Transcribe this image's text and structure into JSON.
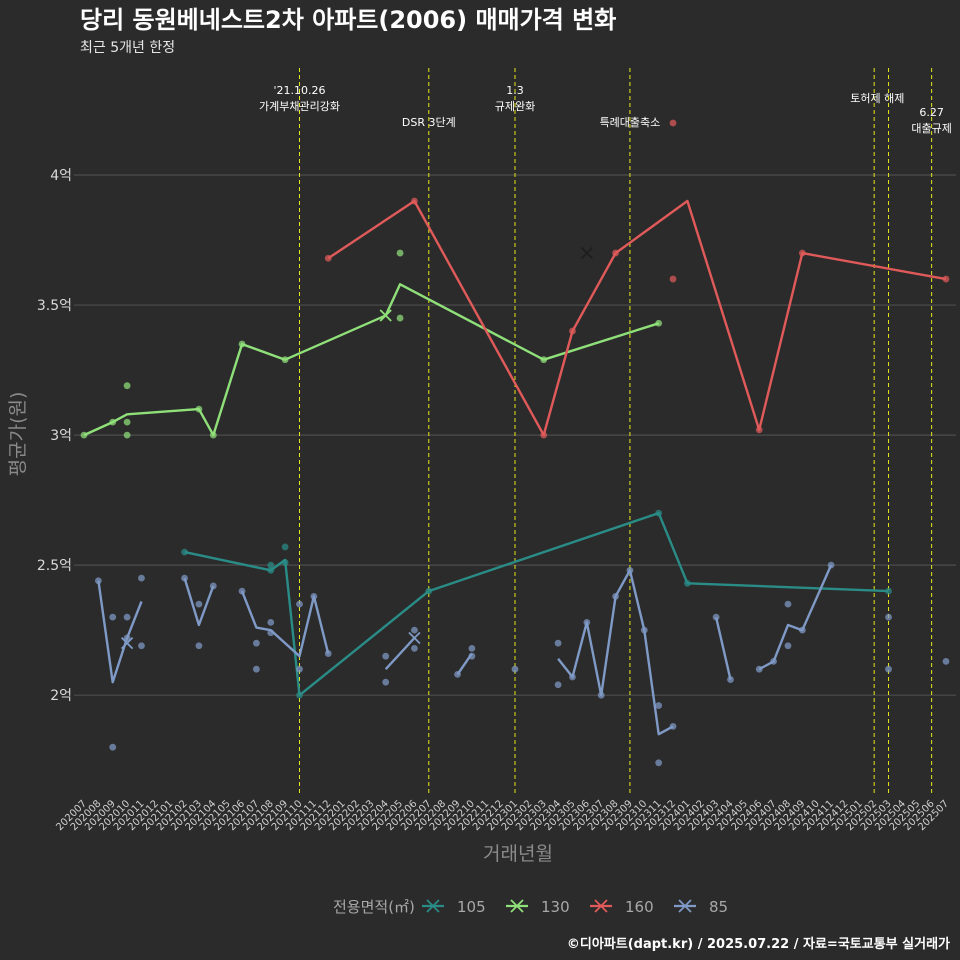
{
  "title": "당리 동원베네스트2차 아파트(2006) 매매가격 변화",
  "subtitle": "최근 5개년 한정",
  "footer": "©디아파트(dapt.kr) / 2025.07.22 / 자료=국토교통부 실거래가",
  "colors": {
    "background": "#2b2b2b",
    "grid": "#4d4d4d",
    "event_line": "#e6e619",
    "105": "#2a8c86",
    "130": "#90e07a",
    "160": "#e05a5a",
    "85": "#7f9ac6"
  },
  "chart_data": {
    "type": "line",
    "title": "당리 동원베네스트2차 아파트(2006) 매매가격 변화",
    "subtitle": "최근 5개년 한정",
    "xlabel": "거래년월",
    "ylabel": "평균가(원)",
    "ylim": [
      1.62,
      4.45
    ],
    "yticks": [
      2,
      2.5,
      3,
      3.5,
      4
    ],
    "ytick_labels": [
      "2억",
      "2.5억",
      "3억",
      "3.5억",
      "4억"
    ],
    "x_categories": [
      "202007",
      "202008",
      "202009",
      "202010",
      "202011",
      "202012",
      "202101",
      "202102",
      "202103",
      "202104",
      "202105",
      "202106",
      "202107",
      "202108",
      "202109",
      "202110",
      "202111",
      "202112",
      "202201",
      "202202",
      "202203",
      "202204",
      "202205",
      "202206",
      "202207",
      "202208",
      "202209",
      "202210",
      "202211",
      "202212",
      "202301",
      "202302",
      "202303",
      "202304",
      "202305",
      "202306",
      "202307",
      "202308",
      "202309",
      "202310",
      "202311",
      "202312",
      "202401",
      "202402",
      "202403",
      "202404",
      "202405",
      "202406",
      "202407",
      "202408",
      "202409",
      "202410",
      "202411",
      "202412",
      "202501",
      "202502",
      "202503",
      "202504",
      "202505",
      "202506",
      "202507"
    ],
    "legend_title": "전용면적(㎡)",
    "legend_position": "bottom",
    "grid": true,
    "events": [
      {
        "x": "202110",
        "label": [
          "'21.10.26",
          "가계부채관리강화"
        ],
        "label_row": 1
      },
      {
        "x": "202207",
        "label": [
          "DSR 3단계"
        ],
        "label_row": 2
      },
      {
        "x": "202301",
        "label": [
          "1.3",
          "규제완화"
        ],
        "label_row": 1
      },
      {
        "x": "202309",
        "label": [
          "특례대출축소"
        ],
        "label_row": 2
      },
      {
        "x": "202502",
        "label": [
          "토허제 해제"
        ],
        "label_row": 1,
        "anchor": "202503"
      },
      {
        "x": "202503",
        "label": [],
        "label_row": 1
      },
      {
        "x": "202506",
        "label": [
          "6.27",
          "대출규제"
        ],
        "label_row": 3
      }
    ],
    "series": [
      {
        "name": "105",
        "line": [
          [
            "202102",
            2.55
          ],
          [
            "202108",
            2.48
          ],
          [
            "202109",
            2.52
          ],
          [
            "202110",
            2.0
          ],
          [
            "202207",
            2.4
          ],
          [
            "202311",
            2.7
          ],
          [
            "202401",
            2.43
          ],
          [
            "202503",
            2.4
          ]
        ],
        "points": [
          [
            "202102",
            2.55
          ],
          [
            "202108",
            2.5
          ],
          [
            "202108",
            2.48
          ],
          [
            "202109",
            2.57
          ],
          [
            "202109",
            2.51
          ],
          [
            "202110",
            2.0
          ],
          [
            "202207",
            2.4
          ],
          [
            "202311",
            2.7
          ],
          [
            "202401",
            2.43
          ],
          [
            "202503",
            2.4
          ]
        ],
        "crosses": []
      },
      {
        "name": "130",
        "line": [
          [
            "202007",
            3.0
          ],
          [
            "202009",
            3.05
          ],
          [
            "202010",
            3.08
          ],
          [
            "202103",
            3.1
          ],
          [
            "202104",
            3.0
          ],
          [
            "202106",
            3.35
          ],
          [
            "202109",
            3.29
          ],
          [
            "202204",
            3.46
          ],
          [
            "202205",
            3.58
          ],
          [
            "202303",
            3.29
          ],
          [
            "202311",
            3.43
          ]
        ],
        "points": [
          [
            "202007",
            3.0
          ],
          [
            "202009",
            3.05
          ],
          [
            "202010",
            3.19
          ],
          [
            "202010",
            3.05
          ],
          [
            "202010",
            3.0
          ],
          [
            "202103",
            3.1
          ],
          [
            "202104",
            3.0
          ],
          [
            "202106",
            3.35
          ],
          [
            "202109",
            3.29
          ],
          [
            "202205",
            3.7
          ],
          [
            "202205",
            3.45
          ],
          [
            "202303",
            3.29
          ],
          [
            "202311",
            3.43
          ]
        ],
        "crosses": [
          [
            "202204",
            3.46
          ]
        ]
      },
      {
        "name": "160",
        "line": [
          [
            "202112",
            3.68
          ],
          [
            "202206",
            3.9
          ],
          [
            "202303",
            3.0
          ],
          [
            "202305",
            3.4
          ],
          [
            "202308",
            3.7
          ],
          [
            "202401",
            3.9
          ],
          [
            "202406",
            3.02
          ],
          [
            "202409",
            3.7
          ],
          [
            "202507",
            3.6
          ]
        ],
        "points": [
          [
            "202112",
            3.68
          ],
          [
            "202206",
            3.9
          ],
          [
            "202303",
            3.0
          ],
          [
            "202305",
            3.4
          ],
          [
            "202308",
            3.7
          ],
          [
            "202312",
            4.2
          ],
          [
            "202312",
            3.6
          ],
          [
            "202406",
            3.02
          ],
          [
            "202409",
            3.7
          ],
          [
            "202507",
            3.6
          ]
        ],
        "crosses": [
          [
            "202306",
            3.7
          ]
        ]
      },
      {
        "name": "85",
        "segments": [
          [
            [
              "202008",
              2.44
            ],
            [
              "202009",
              2.05
            ],
            [
              "202010",
              2.22
            ],
            [
              "202011",
              2.36
            ]
          ],
          [
            [
              "202102",
              2.45
            ],
            [
              "202103",
              2.27
            ],
            [
              "202104",
              2.42
            ]
          ],
          [
            [
              "202106",
              2.4
            ],
            [
              "202107",
              2.26
            ],
            [
              "202108",
              2.25
            ],
            [
              "202110",
              2.15
            ],
            [
              "202111",
              2.38
            ],
            [
              "202112",
              2.16
            ]
          ],
          [
            [
              "202204",
              2.1
            ],
            [
              "202206",
              2.22
            ]
          ],
          [
            [
              "202209",
              2.08
            ],
            [
              "202210",
              2.16
            ]
          ],
          [
            [
              "202304",
              2.14
            ],
            [
              "202305",
              2.07
            ],
            [
              "202306",
              2.28
            ],
            [
              "202307",
              2.0
            ],
            [
              "202308",
              2.38
            ],
            [
              "202309",
              2.48
            ],
            [
              "202310",
              2.25
            ],
            [
              "202311",
              1.85
            ],
            [
              "202312",
              1.88
            ]
          ],
          [
            [
              "202403",
              2.3
            ],
            [
              "202404",
              2.06
            ]
          ],
          [
            [
              "202406",
              2.1
            ],
            [
              "202407",
              2.13
            ],
            [
              "202408",
              2.27
            ],
            [
              "202409",
              2.25
            ],
            [
              "202411",
              2.5
            ]
          ]
        ],
        "points": [
          [
            "202008",
            2.44
          ],
          [
            "202009",
            2.3
          ],
          [
            "202009",
            1.8
          ],
          [
            "202010",
            2.3
          ],
          [
            "202010",
            2.22
          ],
          [
            "202011",
            2.45
          ],
          [
            "202011",
            2.19
          ],
          [
            "202102",
            2.45
          ],
          [
            "202103",
            2.35
          ],
          [
            "202103",
            2.19
          ],
          [
            "202104",
            2.42
          ],
          [
            "202106",
            2.4
          ],
          [
            "202107",
            2.2
          ],
          [
            "202107",
            2.1
          ],
          [
            "202108",
            2.28
          ],
          [
            "202108",
            2.24
          ],
          [
            "202110",
            2.35
          ],
          [
            "202110",
            2.1
          ],
          [
            "202111",
            2.38
          ],
          [
            "202112",
            2.16
          ],
          [
            "202204",
            2.15
          ],
          [
            "202204",
            2.05
          ],
          [
            "202206",
            2.25
          ],
          [
            "202206",
            2.18
          ],
          [
            "202209",
            2.08
          ],
          [
            "202210",
            2.18
          ],
          [
            "202210",
            2.15
          ],
          [
            "202301",
            2.1
          ],
          [
            "202304",
            2.2
          ],
          [
            "202304",
            2.04
          ],
          [
            "202305",
            2.07
          ],
          [
            "202306",
            2.28
          ],
          [
            "202307",
            2.0
          ],
          [
            "202308",
            2.38
          ],
          [
            "202309",
            2.48
          ],
          [
            "202310",
            2.25
          ],
          [
            "202311",
            1.96
          ],
          [
            "202311",
            1.74
          ],
          [
            "202312",
            1.88
          ],
          [
            "202403",
            2.3
          ],
          [
            "202404",
            2.06
          ],
          [
            "202406",
            2.1
          ],
          [
            "202407",
            2.13
          ],
          [
            "202408",
            2.35
          ],
          [
            "202408",
            2.19
          ],
          [
            "202409",
            2.25
          ],
          [
            "202411",
            2.5
          ],
          [
            "202503",
            2.3
          ],
          [
            "202503",
            2.1
          ],
          [
            "202507",
            2.13
          ]
        ],
        "crosses": [
          [
            "202010",
            2.2
          ],
          [
            "202206",
            2.22
          ]
        ]
      }
    ]
  }
}
